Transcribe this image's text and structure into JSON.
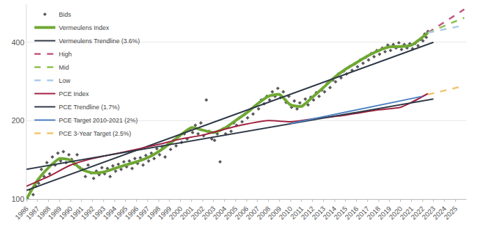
{
  "chart_data": {
    "type": "line",
    "log": "y",
    "grid": true,
    "legend": "upper left",
    "xlim": [
      1986,
      2026
    ],
    "xticks": [
      1986,
      1987,
      1988,
      1989,
      1990,
      1991,
      1992,
      1993,
      1994,
      1995,
      1996,
      1997,
      1998,
      1999,
      2000,
      2001,
      2002,
      2003,
      2004,
      2005,
      2006,
      2007,
      2008,
      2009,
      2010,
      2011,
      2012,
      2013,
      2014,
      2015,
      2016,
      2017,
      2018,
      2019,
      2020,
      2021,
      2022,
      2023,
      2024,
      2025
    ],
    "ylim": [
      100,
      560
    ],
    "yticks": [
      100,
      200,
      400
    ],
    "series": [
      {
        "name": "Bids",
        "type": "scatter",
        "marker": "diamond",
        "color": "#5a5a5a",
        "x": [
          1986.1,
          1986.35,
          1986.6,
          1986.85,
          1987.1,
          1987.35,
          1987.6,
          1987.85,
          1988.1,
          1988.35,
          1988.6,
          1988.85,
          1989.1,
          1989.35,
          1989.6,
          1989.85,
          1990.1,
          1990.35,
          1990.6,
          1990.85,
          1991.1,
          1991.35,
          1991.6,
          1991.85,
          1992.1,
          1992.35,
          1992.6,
          1992.85,
          1993.1,
          1993.35,
          1993.6,
          1993.85,
          1994.1,
          1994.35,
          1994.6,
          1994.85,
          1995.1,
          1995.35,
          1995.6,
          1995.85,
          1996.1,
          1996.35,
          1996.6,
          1996.85,
          1997.1,
          1997.35,
          1997.6,
          1997.85,
          1998.1,
          1998.35,
          1998.6,
          1998.85,
          1999.1,
          1999.35,
          1999.6,
          1999.85,
          2000.1,
          2000.35,
          2000.6,
          2000.85,
          2001.1,
          2001.35,
          2001.6,
          2001.85,
          2002.1,
          2002.35,
          2002.6,
          2002.85,
          2003.1,
          2003.35,
          2003.6,
          2003.85,
          2004.1,
          2004.35,
          2004.6,
          2004.85,
          2005.1,
          2005.35,
          2005.6,
          2005.85,
          2006.1,
          2006.35,
          2006.6,
          2006.85,
          2007.1,
          2007.35,
          2007.6,
          2007.85,
          2008.1,
          2008.35,
          2008.6,
          2008.85,
          2009.1,
          2009.35,
          2009.6,
          2009.85,
          2010.1,
          2010.35,
          2010.6,
          2010.85,
          2011.1,
          2011.35,
          2011.6,
          2011.85,
          2012.1,
          2012.35,
          2012.6,
          2012.85,
          2013.1,
          2013.35,
          2013.6,
          2013.85,
          2014.1,
          2014.35,
          2014.6,
          2014.85,
          2015.1,
          2015.35,
          2015.6,
          2015.85,
          2016.1,
          2016.35,
          2016.6,
          2016.85,
          2017.1,
          2017.35,
          2017.6,
          2017.85,
          2018.1,
          2018.35,
          2018.6,
          2018.85,
          2019.1,
          2019.35,
          2019.6,
          2019.85,
          2020.1,
          2020.35,
          2020.6,
          2020.85,
          2021.1,
          2021.35,
          2021.6,
          2021.85,
          2022.05,
          2022.2,
          2022.35,
          2022.5
        ],
        "values": [
          100,
          108,
          104,
          112,
          115,
          130,
          122,
          138,
          125,
          145,
          135,
          150,
          140,
          152,
          138,
          148,
          142,
          136,
          148,
          132,
          130,
          122,
          135,
          126,
          120,
          128,
          124,
          132,
          125,
          131,
          122,
          134,
          128,
          136,
          130,
          139,
          133,
          140,
          131,
          143,
          137,
          144,
          135,
          147,
          140,
          150,
          143,
          156,
          148,
          158,
          145,
          162,
          155,
          168,
          160,
          174,
          165,
          178,
          170,
          185,
          180,
          192,
          178,
          196,
          175,
          240,
          182,
          170,
          168,
          178,
          139,
          186,
          178,
          190,
          182,
          196,
          192,
          205,
          198,
          212,
          205,
          220,
          212,
          228,
          222,
          240,
          232,
          248,
          240,
          258,
          248,
          266,
          245,
          258,
          235,
          248,
          225,
          238,
          222,
          234,
          228,
          242,
          230,
          246,
          240,
          256,
          248,
          262,
          258,
          278,
          268,
          286,
          282,
          302,
          292,
          310,
          302,
          322,
          312,
          330,
          322,
          342,
          332,
          350,
          342,
          362,
          352,
          372,
          360,
          380,
          368,
          390,
          372,
          392,
          380,
          398,
          375,
          392,
          380,
          395,
          378,
          396,
          388,
          410,
          405,
          430,
          418,
          440
        ]
      },
      {
        "name": "Vermeulens Index",
        "type": "line",
        "line_style": "solid",
        "color": "#6fa833",
        "x": [
          1986,
          1987,
          1988,
          1989,
          1990,
          1991,
          1992,
          1993,
          1994,
          1995,
          1996,
          1997,
          1998,
          1999,
          2000,
          2001,
          2002,
          2003,
          2004,
          2005,
          2006,
          2007,
          2008,
          2009,
          2010,
          2011,
          2012,
          2013,
          2014,
          2015,
          2016,
          2017,
          2018,
          2019,
          2020,
          2021,
          2022,
          2022.5
        ],
        "values": [
          100,
          118,
          132,
          143,
          141,
          130,
          126,
          127,
          131,
          135,
          139,
          144,
          152,
          163,
          176,
          188,
          184,
          180,
          187,
          200,
          214,
          232,
          248,
          252,
          230,
          227,
          246,
          268,
          293,
          315,
          334,
          354,
          371,
          384,
          385,
          390,
          418,
          435
        ]
      },
      {
        "name": "Vermeulens Trendline (3.6%)",
        "type": "line",
        "line_style": "solid",
        "color": "#2e3847",
        "x": [
          1986,
          2023
        ],
        "values": [
          108,
          400
        ]
      },
      {
        "name": "High",
        "type": "line",
        "line_style": "dash",
        "color": "#c4557f",
        "x": [
          2022.5,
          2025.8
        ],
        "values": [
          435,
          535
        ]
      },
      {
        "name": "Mid",
        "type": "line",
        "line_style": "dash",
        "color": "#8dbf4c",
        "x": [
          2022.5,
          2025.8
        ],
        "values": [
          435,
          497
        ]
      },
      {
        "name": "Low",
        "type": "line",
        "line_style": "dash",
        "color": "#a9cbe8",
        "x": [
          2022.5,
          2025.8
        ],
        "values": [
          435,
          465
        ]
      },
      {
        "name": "PCE Index",
        "type": "line",
        "line_style": "solid",
        "color": "#a0203f",
        "x": [
          1986,
          1988,
          1990,
          1992,
          1995,
          1998,
          2000,
          2002,
          2005,
          2008,
          2010,
          2012,
          2015,
          2018,
          2020,
          2021,
          2022.5
        ],
        "values": [
          112,
          122,
          135,
          143,
          152,
          162,
          170,
          176,
          190,
          200,
          198,
          203,
          210,
          220,
          225,
          235,
          254
        ]
      },
      {
        "name": "PCE Trendline (1.7%)",
        "type": "line",
        "line_style": "solid",
        "color": "#2e3847",
        "x": [
          1986,
          2023
        ],
        "values": [
          130,
          242
        ]
      },
      {
        "name": "PCE Target 2010-2021 (2%)",
        "type": "line",
        "line_style": "solid",
        "color": "#4a7fc1",
        "x": [
          2010,
          2022
        ],
        "values": [
          195,
          248
        ]
      },
      {
        "name": "PCE 3-Year Target (2.5%)",
        "type": "line",
        "line_style": "dash",
        "color": "#f2c46d",
        "x": [
          2022.5,
          2025.8
        ],
        "values": [
          252,
          272
        ]
      }
    ]
  }
}
